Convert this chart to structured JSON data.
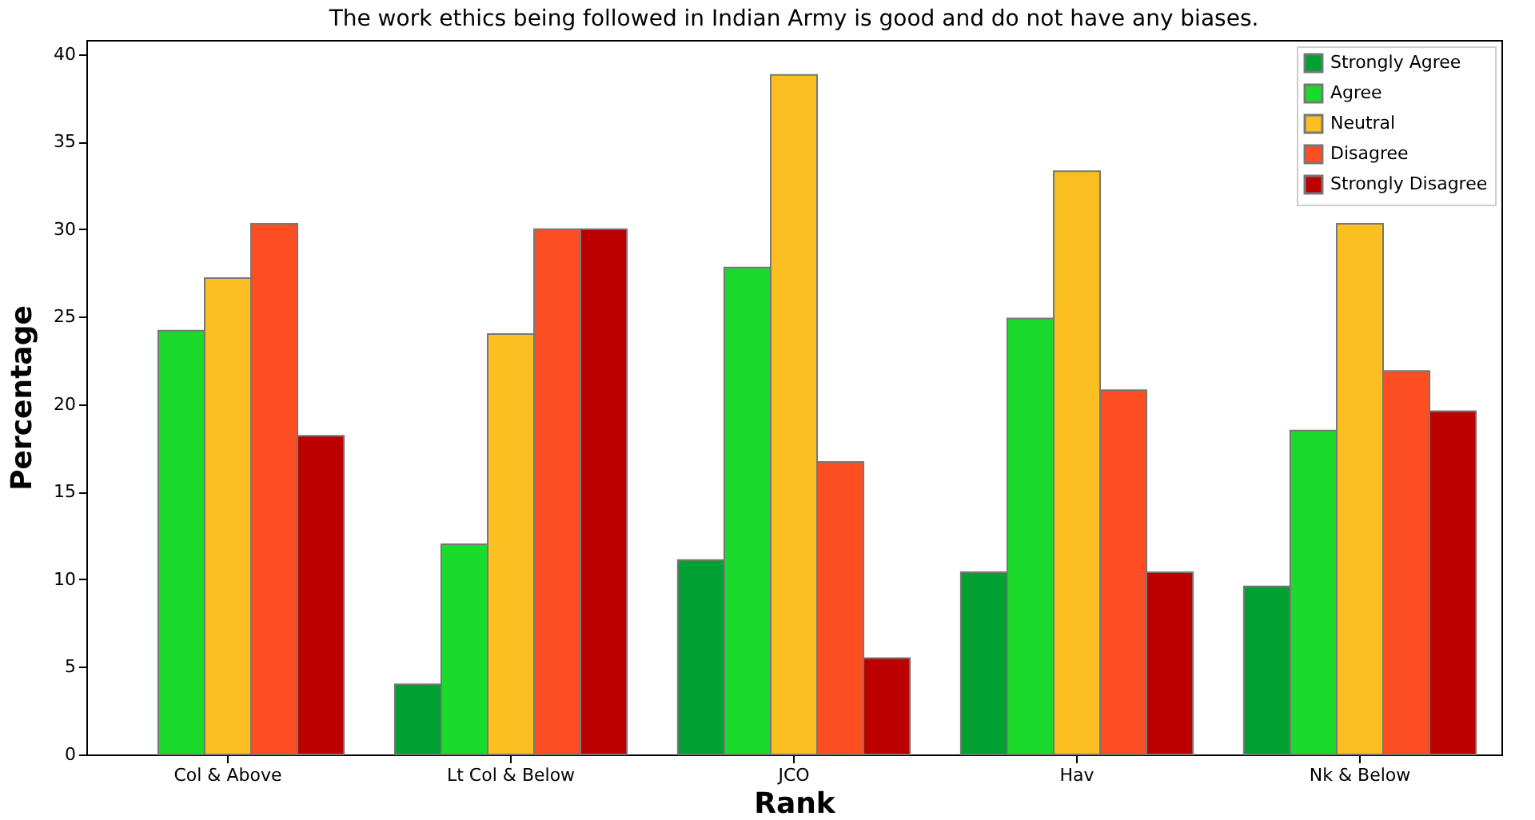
{
  "chart_data": {
    "type": "bar",
    "title": "The work ethics being followed in Indian Army is good and do not have any biases.",
    "xlabel": "Rank",
    "ylabel": "Percentage",
    "categories": [
      "Col & Above",
      "Lt Col & Below",
      "JCO",
      "Hav",
      "Nk & Below"
    ],
    "series": [
      {
        "name": "Strongly Agree",
        "color": "#00a032",
        "values": [
          0,
          4.0,
          11.1,
          10.4,
          9.6
        ]
      },
      {
        "name": "Agree",
        "color": "#1adb2c",
        "values": [
          24.2,
          12.0,
          27.8,
          24.9,
          18.5
        ]
      },
      {
        "name": "Neutral",
        "color": "#fbbf22",
        "values": [
          27.2,
          24.0,
          38.8,
          33.3,
          30.3
        ]
      },
      {
        "name": "Disagree",
        "color": "#fd4d22",
        "values": [
          30.3,
          30.0,
          16.7,
          20.8,
          21.9
        ]
      },
      {
        "name": "Strongly Disagree",
        "color": "#bc0000",
        "values": [
          18.2,
          30.0,
          5.5,
          10.4,
          19.6
        ]
      }
    ],
    "ylim": [
      0,
      40.8
    ],
    "yticks": [
      0,
      5,
      10,
      15,
      20,
      25,
      30,
      35,
      40
    ],
    "grid": false,
    "legend": "top right"
  }
}
